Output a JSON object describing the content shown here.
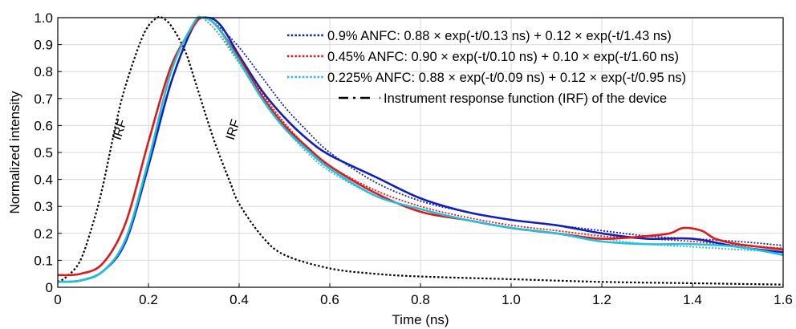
{
  "chart_data": {
    "type": "line",
    "xlabel": "Time (ns)",
    "ylabel": "Normalized intensity",
    "xlim": [
      0,
      1.6
    ],
    "ylim": [
      0,
      1.0
    ],
    "x_ticks": [
      "0",
      "0.2",
      "0.4",
      "0.6",
      "0.8",
      "1.0",
      "1.2",
      "1.4",
      "1.6"
    ],
    "y_ticks": [
      "0",
      "0.1",
      "0.2",
      "0.3",
      "0.4",
      "0.5",
      "0.6",
      "0.7",
      "0.8",
      "0.9",
      "1.0"
    ],
    "grid": true,
    "legend_position": "top-right",
    "colors": {
      "blue": "#1020b8",
      "red": "#e01818",
      "cyan": "#22c0dc",
      "black": "#000000",
      "grid": "#d8d8d8"
    },
    "annotations": [
      {
        "text": "IRF",
        "x": 0.145,
        "y": 0.58
      },
      {
        "text": "IRF",
        "x": 0.395,
        "y": 0.58
      }
    ],
    "legend": [
      {
        "label": "0.9% ANFC: 0.88 × exp(-t/0.13 ns) + 0.12 × exp(-t/1.43 ns)",
        "color": "#1020b8",
        "style": "dotted"
      },
      {
        "label": "0.45% ANFC: 0.90 × exp(-t/0.10 ns) + 0.10 × exp(-t/1.60 ns)",
        "color": "#e01818",
        "style": "dotted"
      },
      {
        "label": "0.225% ANFC: 0.88 × exp(-t/0.09 ns) + 0.12 × exp(-t/0.95 ns)",
        "color": "#22c0dc",
        "style": "dotted"
      },
      {
        "label": "Instrument response function (IRF) of the device",
        "color": "#000000",
        "style": "dashdot"
      }
    ],
    "series": [
      {
        "name": "0.9% ANFC",
        "kind": "measured",
        "color": "#1020b8",
        "x": [
          0,
          0.05,
          0.1,
          0.15,
          0.2,
          0.25,
          0.3,
          0.33,
          0.36,
          0.4,
          0.45,
          0.5,
          0.55,
          0.6,
          0.7,
          0.8,
          0.9,
          1.0,
          1.1,
          1.2,
          1.3,
          1.4,
          1.5,
          1.6
        ],
        "y": [
          0.02,
          0.025,
          0.06,
          0.17,
          0.45,
          0.76,
          0.97,
          1.0,
          0.97,
          0.86,
          0.73,
          0.63,
          0.55,
          0.49,
          0.41,
          0.33,
          0.28,
          0.25,
          0.23,
          0.2,
          0.18,
          0.18,
          0.15,
          0.13
        ]
      },
      {
        "name": "0.9% ANFC",
        "kind": "fit",
        "color": "#1020b8",
        "x": [
          0.33,
          0.36,
          0.4,
          0.45,
          0.5,
          0.55,
          0.6,
          0.7,
          0.8,
          0.9,
          1.0,
          1.1,
          1.2,
          1.3,
          1.4,
          1.5,
          1.6
        ],
        "y": [
          1.0,
          0.96,
          0.89,
          0.78,
          0.67,
          0.58,
          0.5,
          0.39,
          0.32,
          0.28,
          0.25,
          0.23,
          0.21,
          0.19,
          0.18,
          0.17,
          0.155
        ]
      },
      {
        "name": "0.45% ANFC",
        "kind": "measured",
        "color": "#e01818",
        "x": [
          0,
          0.05,
          0.1,
          0.15,
          0.2,
          0.25,
          0.3,
          0.32,
          0.35,
          0.4,
          0.45,
          0.5,
          0.55,
          0.6,
          0.7,
          0.8,
          0.9,
          1.0,
          1.1,
          1.2,
          1.3,
          1.35,
          1.38,
          1.42,
          1.45,
          1.5,
          1.6
        ],
        "y": [
          0.045,
          0.05,
          0.09,
          0.24,
          0.54,
          0.82,
          0.97,
          1.0,
          0.97,
          0.85,
          0.71,
          0.6,
          0.52,
          0.45,
          0.35,
          0.28,
          0.25,
          0.22,
          0.2,
          0.18,
          0.19,
          0.2,
          0.22,
          0.21,
          0.18,
          0.16,
          0.14
        ]
      },
      {
        "name": "0.45% ANFC",
        "kind": "fit",
        "color": "#e01818",
        "x": [
          0.32,
          0.35,
          0.4,
          0.45,
          0.5,
          0.55,
          0.6,
          0.7,
          0.8,
          0.9,
          1.0,
          1.1,
          1.2,
          1.3,
          1.4,
          1.5,
          1.6
        ],
        "y": [
          1.0,
          0.95,
          0.84,
          0.72,
          0.61,
          0.52,
          0.45,
          0.36,
          0.3,
          0.26,
          0.23,
          0.21,
          0.19,
          0.18,
          0.17,
          0.155,
          0.145
        ]
      },
      {
        "name": "0.225% ANFC",
        "kind": "measured",
        "color": "#22c0dc",
        "x": [
          0,
          0.05,
          0.1,
          0.15,
          0.2,
          0.25,
          0.3,
          0.32,
          0.35,
          0.4,
          0.45,
          0.5,
          0.55,
          0.6,
          0.7,
          0.8,
          0.9,
          1.0,
          1.1,
          1.2,
          1.3,
          1.4,
          1.5,
          1.6
        ],
        "y": [
          0.02,
          0.025,
          0.06,
          0.18,
          0.47,
          0.8,
          0.98,
          1.0,
          0.97,
          0.84,
          0.7,
          0.59,
          0.51,
          0.44,
          0.34,
          0.29,
          0.25,
          0.22,
          0.2,
          0.17,
          0.16,
          0.16,
          0.15,
          0.12
        ]
      },
      {
        "name": "0.225% ANFC",
        "kind": "fit",
        "color": "#22c0dc",
        "x": [
          0.32,
          0.35,
          0.4,
          0.45,
          0.5,
          0.55,
          0.6,
          0.7,
          0.8,
          0.9,
          1.0,
          1.1,
          1.2,
          1.3,
          1.4,
          1.5,
          1.6
        ],
        "y": [
          1.0,
          0.95,
          0.83,
          0.7,
          0.59,
          0.5,
          0.43,
          0.34,
          0.29,
          0.25,
          0.22,
          0.2,
          0.18,
          0.16,
          0.15,
          0.14,
          0.13
        ]
      },
      {
        "name": "Instrument response function (IRF) of the device",
        "kind": "irf",
        "color": "#000000",
        "x": [
          0,
          0.02,
          0.05,
          0.08,
          0.1,
          0.13,
          0.15,
          0.18,
          0.2,
          0.22,
          0.23,
          0.25,
          0.28,
          0.3,
          0.33,
          0.35,
          0.38,
          0.4,
          0.45,
          0.5,
          0.6,
          0.7,
          0.8,
          1.0,
          1.2,
          1.4,
          1.6
        ],
        "y": [
          0.02,
          0.04,
          0.1,
          0.25,
          0.38,
          0.62,
          0.75,
          0.9,
          0.97,
          1.0,
          1.0,
          0.97,
          0.88,
          0.78,
          0.62,
          0.52,
          0.39,
          0.31,
          0.19,
          0.12,
          0.07,
          0.05,
          0.04,
          0.03,
          0.02,
          0.015,
          0.01
        ]
      }
    ]
  }
}
